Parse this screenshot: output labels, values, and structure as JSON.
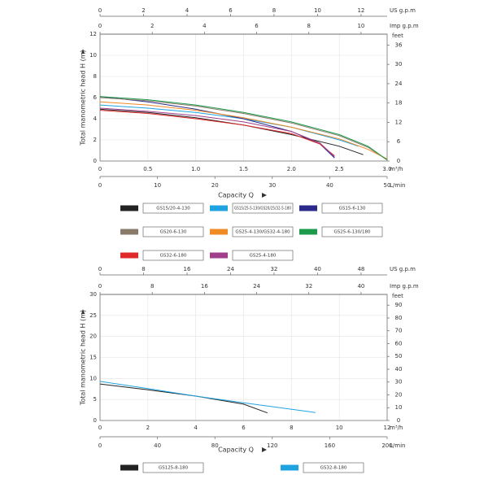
{
  "chart_data": [
    {
      "type": "line",
      "y_label": "Total  manometric  head  H  (m)",
      "x_label": "Capacity  Q",
      "xunit": "m³/h",
      "xlim": [
        0,
        3
      ],
      "xticks": [
        0,
        0.5,
        {
          "value": 1,
          "label": "1.0"
        },
        1.5,
        {
          "value": 2,
          "label": "2.0"
        },
        2.5,
        {
          "value": 3,
          "label": "3.0"
        }
      ],
      "ylim": [
        0,
        12
      ],
      "yticks": [
        0,
        2,
        4,
        6,
        8,
        10,
        12
      ],
      "grid": true,
      "x_axes": [
        {
          "unit": "L/min",
          "lim": [
            0,
            50
          ],
          "ticks": [
            0,
            10,
            20,
            30,
            40,
            50
          ]
        },
        {
          "unit": "US g.p.m",
          "lim": [
            0,
            13.2
          ],
          "ticks": [
            0,
            2,
            4,
            6,
            8,
            10,
            12
          ]
        },
        {
          "unit": "Imp g.p.m",
          "lim": [
            0,
            11
          ],
          "ticks": [
            0,
            2,
            4,
            6,
            8,
            10
          ]
        }
      ],
      "y2": {
        "unit": "feet",
        "lim": [
          0,
          39.37
        ],
        "ticks": [
          0,
          6,
          12,
          18,
          24,
          30,
          36
        ]
      },
      "series": [
        {
          "name": "GS15/20-4-130",
          "color": "#222222",
          "x": [
            0,
            0.5,
            1,
            1.5,
            2,
            2.5,
            2.75
          ],
          "values": [
            4.9,
            4.6,
            4.1,
            3.4,
            2.5,
            1.4,
            0.6
          ]
        },
        {
          "name": "GS15/25-5-130/GS20/25/32-5-180",
          "color": "#1fa3e0",
          "x": [
            0,
            0.5,
            1,
            1.5,
            2,
            2.5,
            2.7
          ],
          "values": [
            5.3,
            5.0,
            4.6,
            4.0,
            3.2,
            2.0,
            1.4
          ]
        },
        {
          "name": "GS15-6-130",
          "color": "#2a2a8a",
          "x": [
            0,
            0.5,
            1,
            1.5,
            2,
            2.3,
            2.45
          ],
          "values": [
            6.1,
            5.6,
            4.9,
            4.0,
            2.8,
            1.6,
            0.3
          ]
        },
        {
          "name": "GS20-6-130",
          "color": "#8a7a6a",
          "x": [
            0,
            0.5,
            1,
            1.5,
            2,
            2.5,
            2.8,
            3.0
          ],
          "values": [
            6.0,
            5.7,
            5.2,
            4.5,
            3.6,
            2.4,
            1.3,
            0.1
          ]
        },
        {
          "name": "GS25-4-130/GS32-4-180",
          "color": "#f08a24",
          "x": [
            0,
            0.5,
            1,
            1.5,
            2,
            2.5,
            2.8,
            3.0
          ],
          "values": [
            5.6,
            5.3,
            4.8,
            4.1,
            3.2,
            2.1,
            1.1,
            0.2
          ]
        },
        {
          "name": "GS25-6-130/180",
          "color": "#1a9a4a",
          "x": [
            0,
            0.5,
            1,
            1.5,
            2,
            2.5,
            2.8,
            3.0
          ],
          "values": [
            6.1,
            5.8,
            5.3,
            4.6,
            3.7,
            2.5,
            1.4,
            0.1
          ]
        },
        {
          "name": "GS32-6-180",
          "color": "#e02a2a",
          "x": [
            0,
            0.5,
            1,
            1.5,
            2,
            2.3,
            2.45
          ],
          "values": [
            4.8,
            4.5,
            4.0,
            3.4,
            2.6,
            1.6,
            0.5
          ]
        },
        {
          "name": "GS25-4-180",
          "color": "#a0408a",
          "x": [
            0,
            0.5,
            1,
            1.5,
            2,
            2.3,
            2.45
          ],
          "values": [
            5.0,
            4.7,
            4.3,
            3.7,
            2.8,
            1.7,
            0.4
          ]
        }
      ]
    },
    {
      "type": "line",
      "y_label": "Total  manometric  head  H  (m)",
      "x_label": "Capacity  Q",
      "xunit": "m³/h",
      "xlim": [
        0,
        12
      ],
      "xticks": [
        0,
        2,
        4,
        6,
        8,
        10,
        12
      ],
      "ylim": [
        0,
        30
      ],
      "yticks": [
        0,
        5,
        10,
        15,
        20,
        25,
        30
      ],
      "grid": true,
      "x_axes": [
        {
          "unit": "L/min",
          "lim": [
            0,
            200
          ],
          "ticks": [
            0,
            40,
            80,
            120,
            160,
            200
          ]
        },
        {
          "unit": "US g.p.m",
          "lim": [
            0,
            52.8
          ],
          "ticks": [
            0,
            8,
            16,
            24,
            32,
            40,
            48
          ]
        },
        {
          "unit": "Imp g.p.m",
          "lim": [
            0,
            44
          ],
          "ticks": [
            0,
            8,
            16,
            24,
            32,
            40
          ]
        }
      ],
      "y2": {
        "unit": "feet",
        "lim": [
          0,
          98.4
        ],
        "ticks": [
          0,
          10,
          20,
          30,
          40,
          50,
          60,
          70,
          80,
          90
        ]
      },
      "series": [
        {
          "name": "GS125-8-180",
          "color": "#222222",
          "x": [
            0,
            2,
            4,
            6,
            7
          ],
          "values": [
            8.7,
            7.3,
            5.8,
            3.9,
            1.8
          ]
        },
        {
          "name": "GS32-8-180",
          "color": "#1fa3e0",
          "x": [
            0,
            2,
            4,
            6,
            9
          ],
          "values": [
            9.3,
            7.6,
            5.8,
            4.2,
            1.9
          ]
        }
      ]
    }
  ]
}
